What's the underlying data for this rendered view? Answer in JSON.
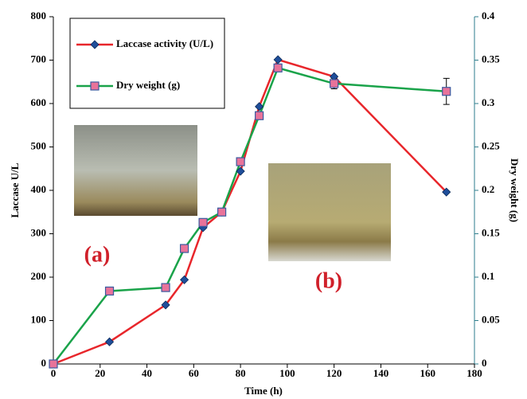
{
  "chart_data": {
    "type": "line",
    "x_label": "Time (h)",
    "y_label": "Laccase U/L",
    "y2_label": "Dry weight (g)",
    "x": [
      0,
      24,
      48,
      56,
      64,
      72,
      80,
      88,
      96,
      120,
      168
    ],
    "xlim": [
      0,
      180
    ],
    "xticks": [
      0,
      20,
      40,
      60,
      80,
      100,
      120,
      140,
      160,
      180
    ],
    "ylim": [
      0,
      800
    ],
    "yticks": [
      0,
      100,
      200,
      300,
      400,
      500,
      600,
      700,
      800
    ],
    "y2lim": [
      0,
      0.4
    ],
    "y2ticks": [
      0,
      0.05,
      0.1,
      0.15,
      0.2,
      0.25,
      0.3,
      0.35,
      0.4
    ],
    "series": [
      {
        "name": "Laccase activity (U/L)",
        "color": "#e8262b",
        "marker": "diamond",
        "marker_color": "#1f4e9a",
        "values": [
          0,
          51,
          136,
          194,
          314,
          350,
          444,
          593,
          701,
          662,
          396
        ]
      },
      {
        "name": "Dry weight (g)",
        "color": "#1aa34a",
        "marker": "square",
        "marker_color": "#e8739a",
        "axis": "y2",
        "values": [
          0,
          0.084,
          0.088,
          0.133,
          0.163,
          0.175,
          0.233,
          0.286,
          0.341,
          0.323,
          0.314
        ],
        "errors": [
          null,
          null,
          null,
          null,
          null,
          null,
          null,
          null,
          null,
          0.006,
          0.015
        ]
      }
    ],
    "annotations": [
      "(a)",
      "(b)"
    ]
  }
}
